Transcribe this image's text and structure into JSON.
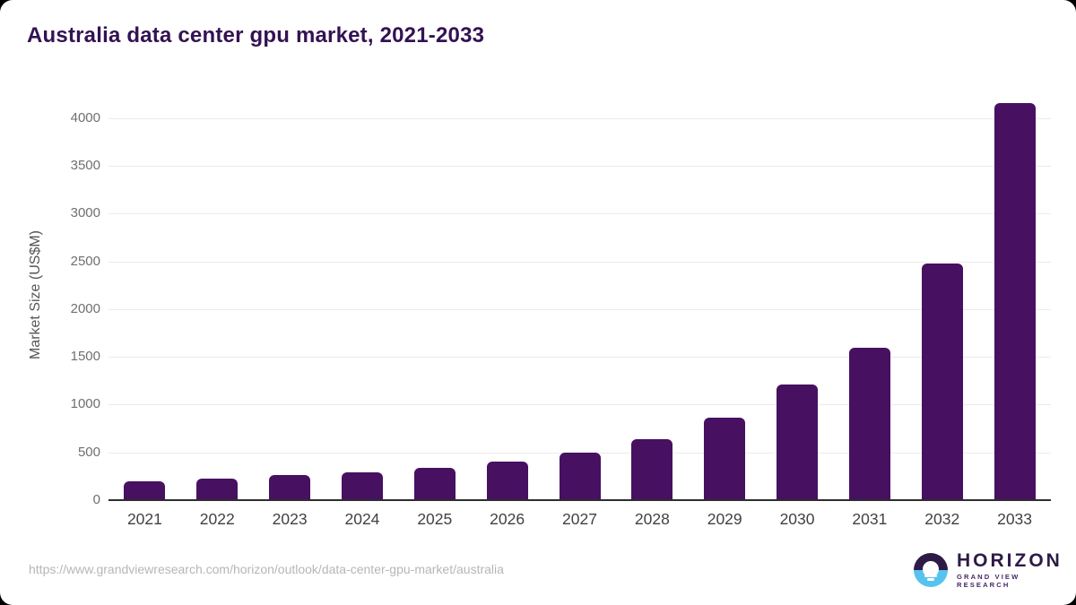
{
  "title": "Australia data center gpu market, 2021-2033",
  "colors": {
    "bar": "#471060",
    "title_text": "#331253",
    "gridline": "#ebebeb",
    "axis_line": "#2e2e2e",
    "y_tick_label": "#6f6f6f",
    "x_tick_label": "#414141",
    "url_text": "#b6b6b6",
    "logo_dark_purple": "#2e1a47",
    "logo_light_blue": "#56c3ee"
  },
  "chart_data": {
    "type": "bar",
    "title": "Australia data center gpu market, 2021-2033",
    "categories": [
      "2021",
      "2022",
      "2023",
      "2024",
      "2025",
      "2026",
      "2027",
      "2028",
      "2029",
      "2030",
      "2031",
      "2032",
      "2033"
    ],
    "values": [
      200,
      230,
      265,
      295,
      335,
      405,
      500,
      640,
      860,
      1210,
      1600,
      2480,
      4160
    ],
    "xlabel": "",
    "ylabel": "Market Size (US$M)",
    "ylim": [
      0,
      4300
    ],
    "yticks": [
      0,
      500,
      1000,
      1500,
      2000,
      2500,
      3000,
      3500,
      4000
    ],
    "grid": "horizontal",
    "legend": "none",
    "bar_color": "#471060"
  },
  "footer": {
    "source_url": "https://www.grandviewresearch.com/horizon/outlook/data-center-gpu-market/australia",
    "logo": {
      "name": "HORIZON",
      "subtitle": "GRAND VIEW RESEARCH",
      "icon": "horizon-sun-over-water-icon"
    }
  }
}
